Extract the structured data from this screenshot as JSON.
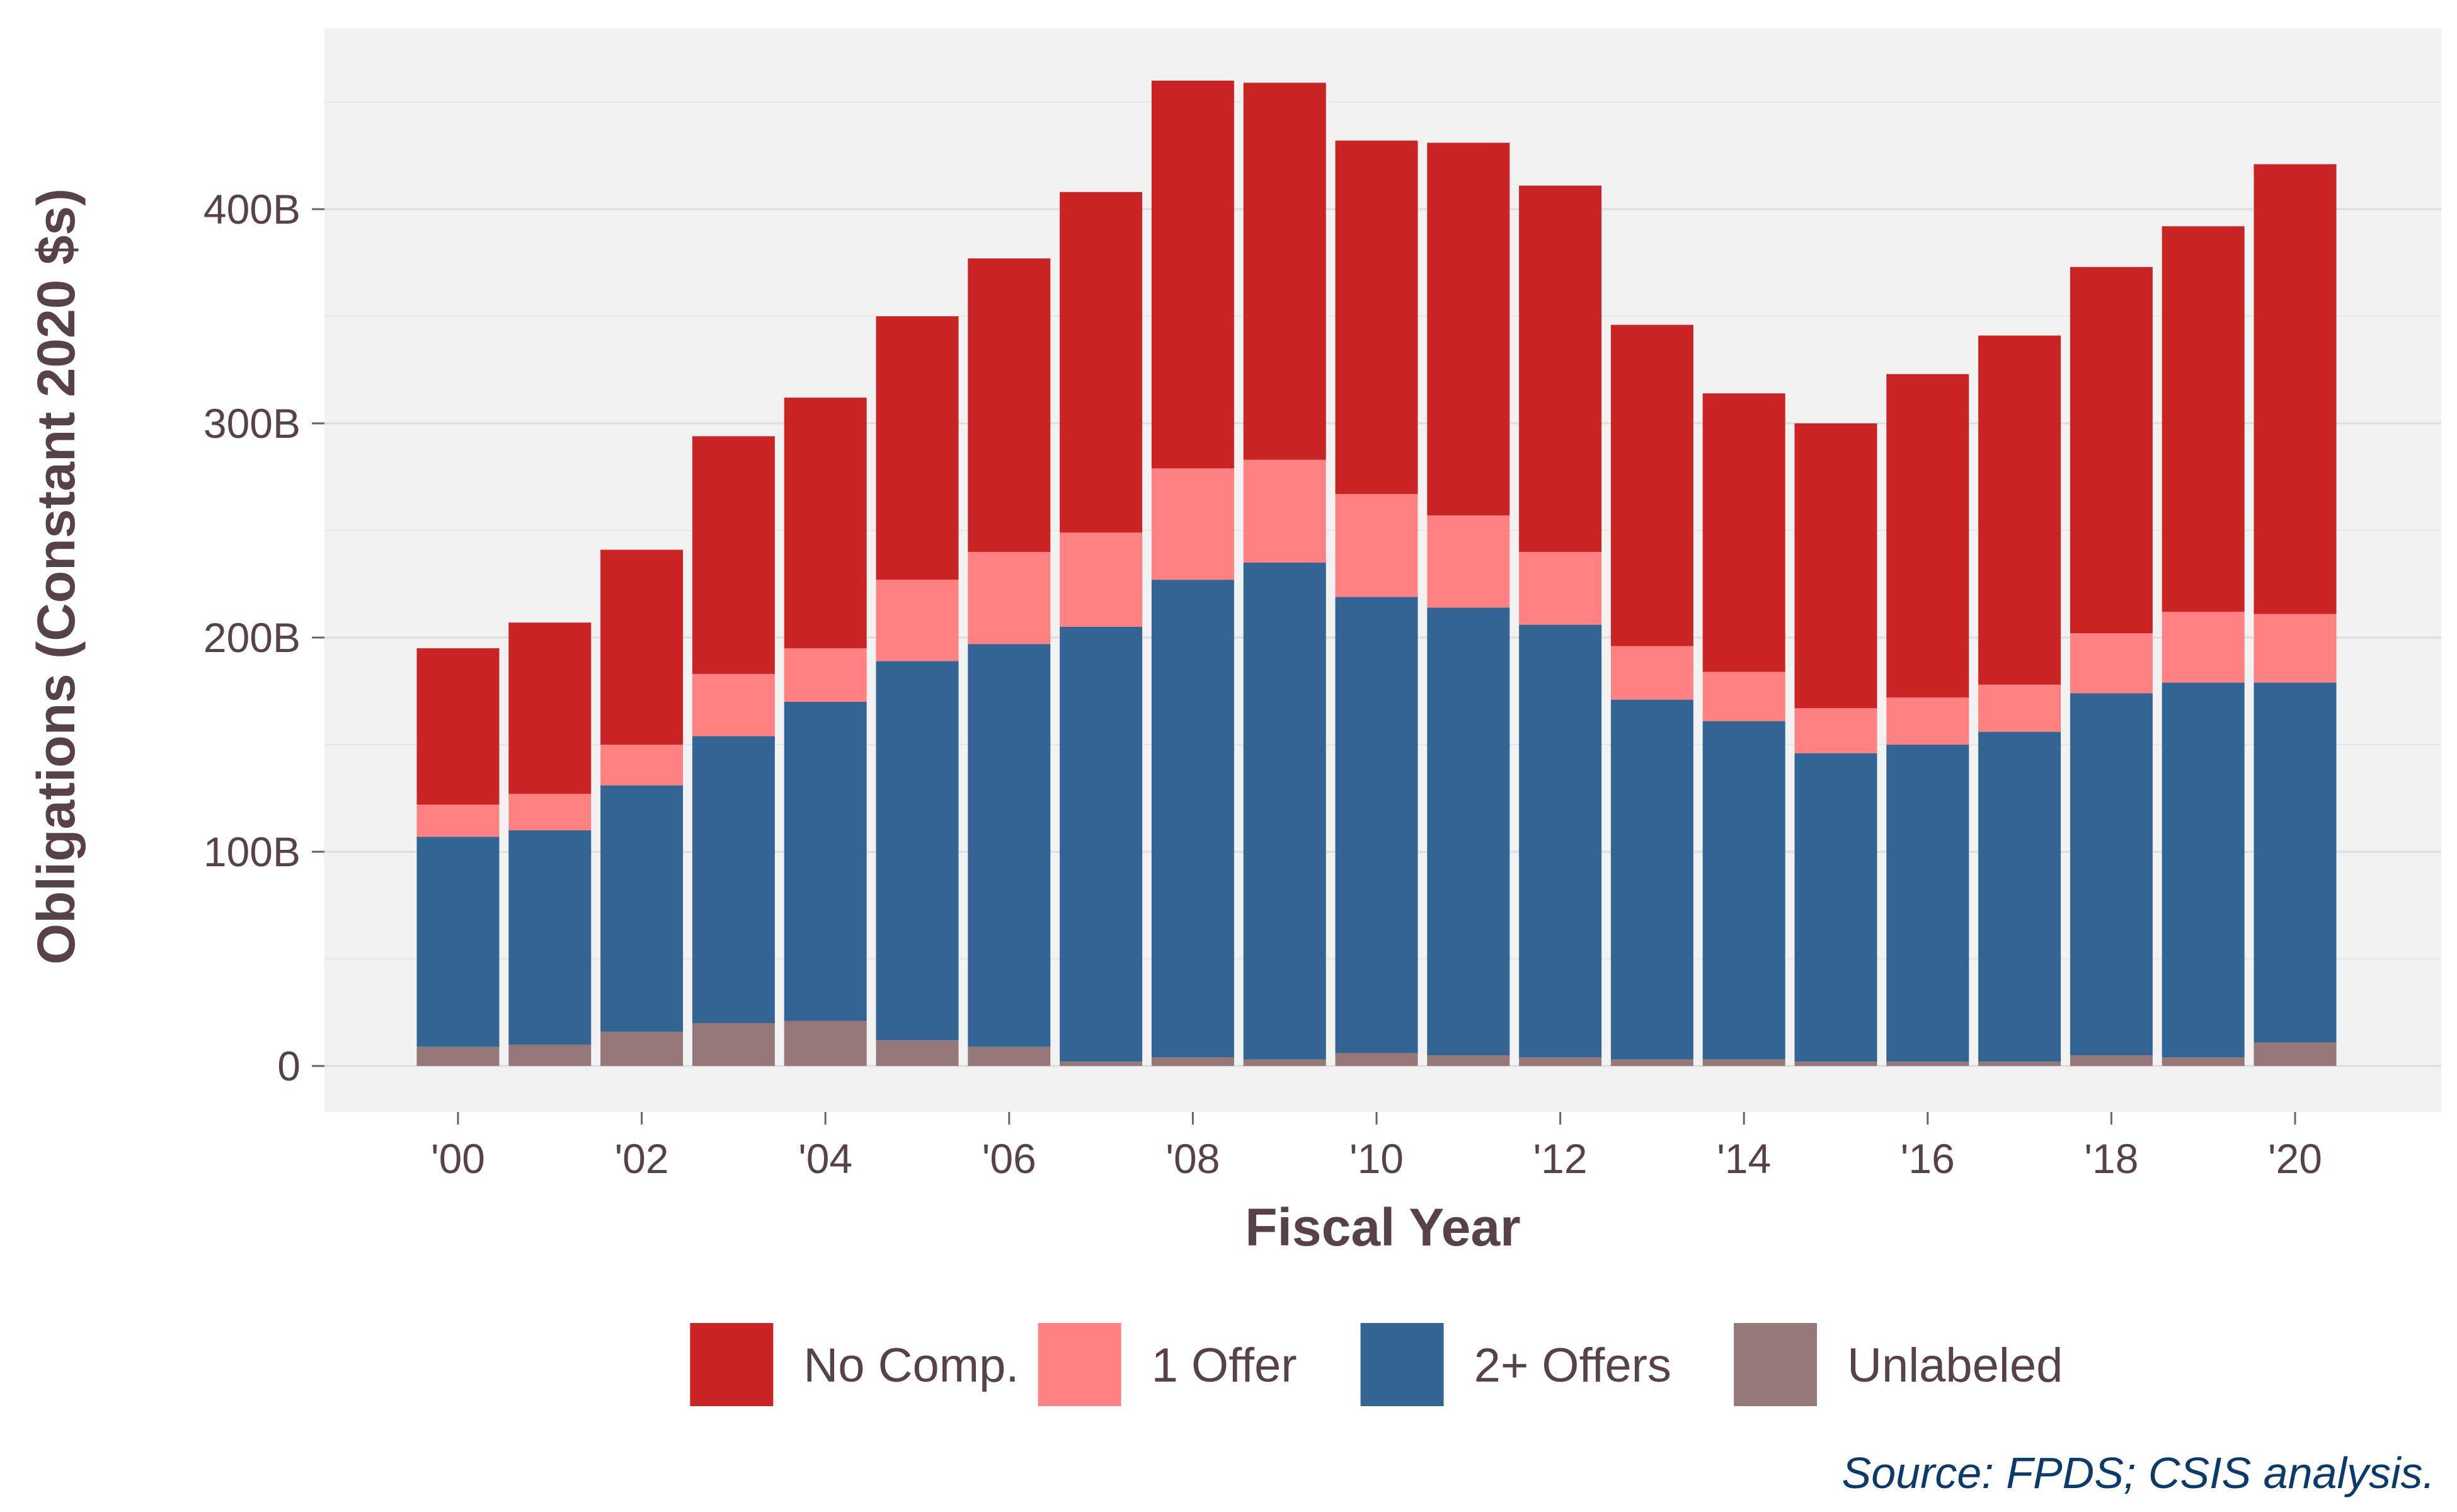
{
  "chart_data": {
    "type": "bar",
    "stacked": true,
    "title": "",
    "xlabel": "Fiscal Year",
    "ylabel": "Obligations (Constant 2020 $s)",
    "ylim": [
      0,
      480
    ],
    "y_unit": "B",
    "y_ticks": [
      {
        "value": 0,
        "label": "0"
      },
      {
        "value": 100,
        "label": "100B"
      },
      {
        "value": 200,
        "label": "200B"
      },
      {
        "value": 300,
        "label": "300B"
      },
      {
        "value": 400,
        "label": "400B"
      }
    ],
    "categories": [
      "2000",
      "2001",
      "2002",
      "2003",
      "2004",
      "2005",
      "2006",
      "2007",
      "2008",
      "2009",
      "2010",
      "2011",
      "2012",
      "2013",
      "2014",
      "2015",
      "2016",
      "2017",
      "2018",
      "2019",
      "2020"
    ],
    "x_tick_labels": [
      {
        "category": "2000",
        "label": "'00"
      },
      {
        "category": "2002",
        "label": "'02"
      },
      {
        "category": "2004",
        "label": "'04"
      },
      {
        "category": "2006",
        "label": "'06"
      },
      {
        "category": "2008",
        "label": "'08"
      },
      {
        "category": "2010",
        "label": "'10"
      },
      {
        "category": "2012",
        "label": "'12"
      },
      {
        "category": "2014",
        "label": "'14"
      },
      {
        "category": "2016",
        "label": "'16"
      },
      {
        "category": "2018",
        "label": "'18"
      },
      {
        "category": "2020",
        "label": "'20"
      }
    ],
    "series": [
      {
        "name": "Unlabeled",
        "color": "#967878",
        "values": [
          9,
          10,
          16,
          20,
          21,
          12,
          9,
          2,
          4,
          3,
          6,
          5,
          4,
          3,
          3,
          2,
          2,
          2,
          5,
          4,
          11
        ]
      },
      {
        "name": "2+ Offers",
        "color": "#336594",
        "values": [
          98,
          100,
          115,
          134,
          149,
          177,
          188,
          203,
          223,
          232,
          213,
          209,
          202,
          168,
          158,
          144,
          148,
          154,
          169,
          175,
          168
        ]
      },
      {
        "name": "1 Offer",
        "color": "#FF8181",
        "values": [
          15,
          17,
          19,
          29,
          25,
          38,
          43,
          44,
          52,
          48,
          48,
          43,
          34,
          25,
          23,
          21,
          22,
          22,
          28,
          33,
          32
        ]
      },
      {
        "name": "No Comp.",
        "color": "#CB2424",
        "values": [
          73,
          80,
          91,
          111,
          117,
          123,
          137,
          159,
          181,
          176,
          165,
          174,
          171,
          150,
          130,
          133,
          151,
          163,
          171,
          180,
          210
        ]
      }
    ],
    "legend": {
      "position": "bottom",
      "order": [
        "No Comp.",
        "1 Offer",
        "2+ Offers",
        "Unlabeled"
      ]
    },
    "grid": true,
    "panel_background": "#F2F2F2",
    "source": "Source: FPDS; CSIS analysis."
  }
}
